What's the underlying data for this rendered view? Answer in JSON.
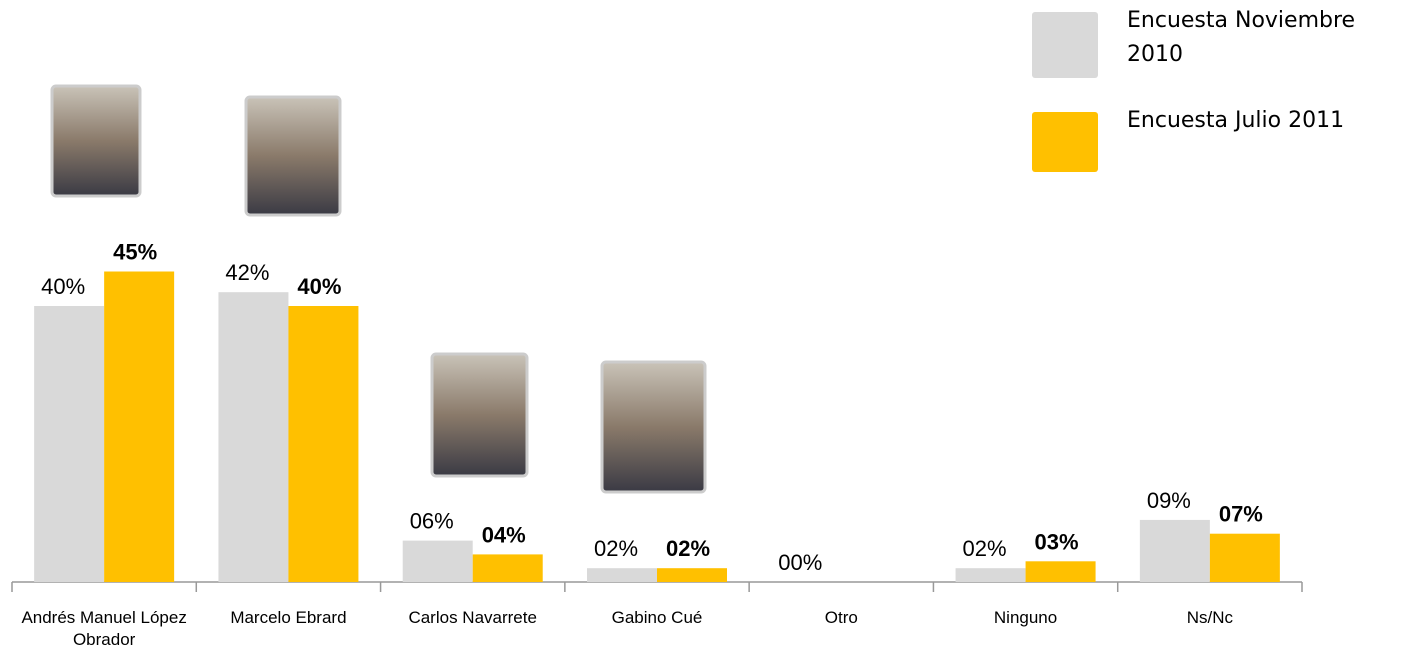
{
  "chart_data": {
    "type": "bar",
    "categories": [
      "Andrés Manuel López Obrador",
      "Marcelo Ebrard",
      "Carlos Navarrete",
      "Gabino Cué",
      "Otro",
      "Ninguno",
      "Ns/Nc"
    ],
    "series": [
      {
        "name": "Encuesta Noviembre 2010",
        "color": "#d9d9d9",
        "values": [
          40,
          42,
          6,
          2,
          0,
          2,
          9
        ],
        "value_labels": [
          "40%",
          "42%",
          "06%",
          "02%",
          "00%",
          "02%",
          "09%"
        ]
      },
      {
        "name": "Encuesta Julio 2011",
        "color": "#ffc000",
        "values": [
          45,
          40,
          4,
          2,
          null,
          3,
          7
        ],
        "value_labels": [
          "45%",
          "40%",
          "04%",
          "02%",
          null,
          "03%",
          "07%"
        ]
      }
    ]
  }
}
